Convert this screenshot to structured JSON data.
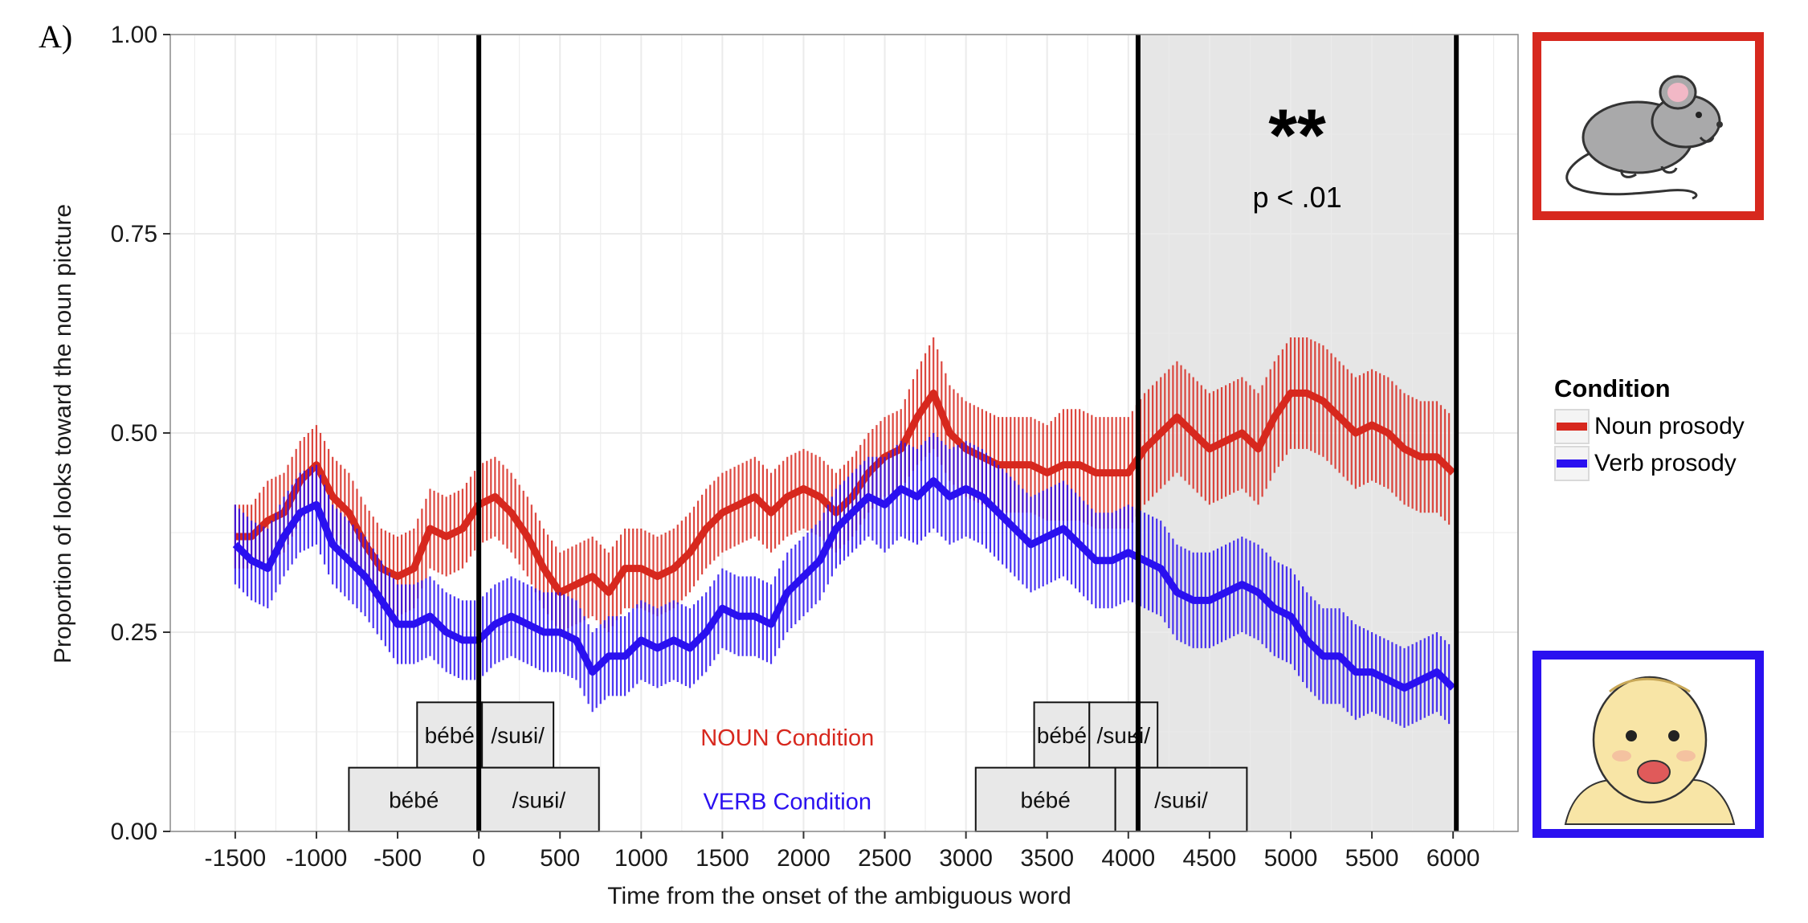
{
  "panel_label": "A)",
  "legend": {
    "title": "Condition",
    "items": [
      {
        "label": "Noun prosody",
        "color": "#d7281e"
      },
      {
        "label": "Verb prosody",
        "color": "#2a10f0"
      }
    ]
  },
  "colors": {
    "noun": "#d7281e",
    "verb": "#2a10f0",
    "shade": "#e6e6e6",
    "grid": "#ebebeb"
  },
  "pictures": {
    "noun_picture": "mouse-drawing",
    "verb_picture": "baby-drawing"
  },
  "chart_data": {
    "type": "line",
    "xlabel": "Time from the onset of the ambiguous word",
    "ylabel": "Proportion of looks toward the noun picture",
    "xlim": [
      -1900,
      6400
    ],
    "ylim": [
      0,
      1
    ],
    "x_ticks": [
      -1500,
      -1000,
      -500,
      0,
      500,
      1000,
      1500,
      2000,
      2500,
      3000,
      3500,
      4000,
      4500,
      5000,
      5500,
      6000
    ],
    "x_tick_labels": [
      "-1500",
      "-1000",
      "-500",
      "0",
      "500",
      "1000",
      "1500",
      "2000",
      "2500",
      "3000",
      "3500",
      "4000",
      "4500",
      "5000",
      "5500",
      "6000"
    ],
    "y_ticks": [
      0,
      0.25,
      0.5,
      0.75,
      1.0
    ],
    "y_tick_labels": [
      "0.00",
      "0.25",
      "0.50",
      "0.75",
      "1.00"
    ],
    "grid": true,
    "legend_position": "right",
    "vertical_lines": [
      0,
      4060,
      6020
    ],
    "shaded_region": [
      4060,
      6020
    ],
    "significance": {
      "stars": "**",
      "text": "p < .01",
      "x": 5040
    },
    "condition_labels": [
      {
        "text": "NOUN Condition",
        "x": 1900,
        "y": 0.118,
        "color": "#d7281e"
      },
      {
        "text": "VERB Condition",
        "x": 1900,
        "y": 0.038,
        "color": "#2a10f0"
      }
    ],
    "word_boxes": [
      {
        "label": "bébé",
        "x0": -380,
        "x1": 20,
        "row": "upper"
      },
      {
        "label": "/suʁi/",
        "x0": 20,
        "x1": 460,
        "row": "upper"
      },
      {
        "label": "bébé",
        "x0": -800,
        "x1": 0,
        "row": "lower"
      },
      {
        "label": "/suʁi/",
        "x0": 0,
        "x1": 740,
        "row": "lower"
      },
      {
        "label": "bébé",
        "x0": 3420,
        "x1": 3760,
        "row": "upper"
      },
      {
        "label": "/suʁi/",
        "x0": 3760,
        "x1": 4180,
        "row": "upper"
      },
      {
        "label": "bébé",
        "x0": 3060,
        "x1": 3920,
        "row": "lower"
      },
      {
        "label": "/suʁi/",
        "x0": 3920,
        "x1": 4730,
        "row": "lower"
      }
    ],
    "series": [
      {
        "name": "Noun prosody",
        "color": "#d7281e",
        "x": [
          -1500,
          -1400,
          -1300,
          -1200,
          -1100,
          -1000,
          -900,
          -800,
          -700,
          -600,
          -500,
          -400,
          -300,
          -200,
          -100,
          0,
          100,
          200,
          300,
          400,
          500,
          600,
          700,
          800,
          900,
          1000,
          1100,
          1200,
          1300,
          1400,
          1500,
          1600,
          1700,
          1800,
          1900,
          2000,
          2100,
          2200,
          2300,
          2400,
          2500,
          2600,
          2700,
          2800,
          2900,
          3000,
          3100,
          3200,
          3300,
          3400,
          3500,
          3600,
          3700,
          3800,
          3900,
          4000,
          4100,
          4200,
          4300,
          4400,
          4500,
          4600,
          4700,
          4800,
          4900,
          5000,
          5100,
          5200,
          5300,
          5400,
          5500,
          5600,
          5700,
          5800,
          5900,
          6000
        ],
        "y": [
          0.37,
          0.37,
          0.39,
          0.4,
          0.44,
          0.46,
          0.42,
          0.4,
          0.36,
          0.33,
          0.32,
          0.33,
          0.38,
          0.37,
          0.38,
          0.41,
          0.42,
          0.4,
          0.37,
          0.33,
          0.3,
          0.31,
          0.32,
          0.3,
          0.33,
          0.33,
          0.32,
          0.33,
          0.35,
          0.38,
          0.4,
          0.41,
          0.42,
          0.4,
          0.42,
          0.43,
          0.42,
          0.4,
          0.42,
          0.45,
          0.47,
          0.48,
          0.52,
          0.55,
          0.5,
          0.48,
          0.47,
          0.46,
          0.46,
          0.46,
          0.45,
          0.46,
          0.46,
          0.45,
          0.45,
          0.45,
          0.48,
          0.5,
          0.52,
          0.5,
          0.48,
          0.49,
          0.5,
          0.48,
          0.52,
          0.55,
          0.55,
          0.54,
          0.52,
          0.5,
          0.51,
          0.5,
          0.48,
          0.47,
          0.47,
          0.45
        ],
        "se": [
          0.04,
          0.04,
          0.05,
          0.05,
          0.05,
          0.05,
          0.05,
          0.05,
          0.05,
          0.05,
          0.05,
          0.05,
          0.05,
          0.05,
          0.05,
          0.05,
          0.05,
          0.05,
          0.05,
          0.05,
          0.05,
          0.05,
          0.05,
          0.05,
          0.05,
          0.05,
          0.05,
          0.05,
          0.05,
          0.05,
          0.05,
          0.05,
          0.05,
          0.05,
          0.05,
          0.05,
          0.05,
          0.05,
          0.05,
          0.05,
          0.05,
          0.05,
          0.06,
          0.07,
          0.06,
          0.06,
          0.06,
          0.06,
          0.06,
          0.06,
          0.06,
          0.07,
          0.07,
          0.07,
          0.07,
          0.07,
          0.07,
          0.07,
          0.07,
          0.07,
          0.07,
          0.07,
          0.07,
          0.07,
          0.07,
          0.07,
          0.07,
          0.07,
          0.07,
          0.07,
          0.07,
          0.07,
          0.07,
          0.07,
          0.07,
          0.07
        ]
      },
      {
        "name": "Verb prosody",
        "color": "#2a10f0",
        "x": [
          -1500,
          -1400,
          -1300,
          -1200,
          -1100,
          -1000,
          -900,
          -800,
          -700,
          -600,
          -500,
          -400,
          -300,
          -200,
          -100,
          0,
          100,
          200,
          300,
          400,
          500,
          600,
          700,
          800,
          900,
          1000,
          1100,
          1200,
          1300,
          1400,
          1500,
          1600,
          1700,
          1800,
          1900,
          2000,
          2100,
          2200,
          2300,
          2400,
          2500,
          2600,
          2700,
          2800,
          2900,
          3000,
          3100,
          3200,
          3300,
          3400,
          3500,
          3600,
          3700,
          3800,
          3900,
          4000,
          4100,
          4200,
          4300,
          4400,
          4500,
          4600,
          4700,
          4800,
          4900,
          5000,
          5100,
          5200,
          5300,
          5400,
          5500,
          5600,
          5700,
          5800,
          5900,
          6000
        ],
        "y": [
          0.36,
          0.34,
          0.33,
          0.37,
          0.4,
          0.41,
          0.36,
          0.34,
          0.32,
          0.29,
          0.26,
          0.26,
          0.27,
          0.25,
          0.24,
          0.24,
          0.26,
          0.27,
          0.26,
          0.25,
          0.25,
          0.24,
          0.2,
          0.22,
          0.22,
          0.24,
          0.23,
          0.24,
          0.23,
          0.25,
          0.28,
          0.27,
          0.27,
          0.26,
          0.3,
          0.32,
          0.34,
          0.38,
          0.4,
          0.42,
          0.41,
          0.43,
          0.42,
          0.44,
          0.42,
          0.43,
          0.42,
          0.4,
          0.38,
          0.36,
          0.37,
          0.38,
          0.36,
          0.34,
          0.34,
          0.35,
          0.34,
          0.33,
          0.3,
          0.29,
          0.29,
          0.3,
          0.31,
          0.3,
          0.28,
          0.27,
          0.24,
          0.22,
          0.22,
          0.2,
          0.2,
          0.19,
          0.18,
          0.19,
          0.2,
          0.18
        ],
        "se": [
          0.05,
          0.05,
          0.05,
          0.05,
          0.05,
          0.05,
          0.05,
          0.05,
          0.05,
          0.05,
          0.05,
          0.05,
          0.05,
          0.05,
          0.05,
          0.05,
          0.05,
          0.05,
          0.05,
          0.05,
          0.05,
          0.05,
          0.05,
          0.05,
          0.05,
          0.05,
          0.05,
          0.05,
          0.05,
          0.05,
          0.05,
          0.05,
          0.05,
          0.05,
          0.05,
          0.05,
          0.05,
          0.05,
          0.05,
          0.05,
          0.06,
          0.06,
          0.06,
          0.06,
          0.06,
          0.06,
          0.06,
          0.06,
          0.06,
          0.06,
          0.06,
          0.06,
          0.06,
          0.06,
          0.06,
          0.06,
          0.06,
          0.06,
          0.06,
          0.06,
          0.06,
          0.06,
          0.06,
          0.06,
          0.06,
          0.06,
          0.06,
          0.06,
          0.06,
          0.06,
          0.05,
          0.05,
          0.05,
          0.05,
          0.05,
          0.05
        ]
      }
    ]
  }
}
